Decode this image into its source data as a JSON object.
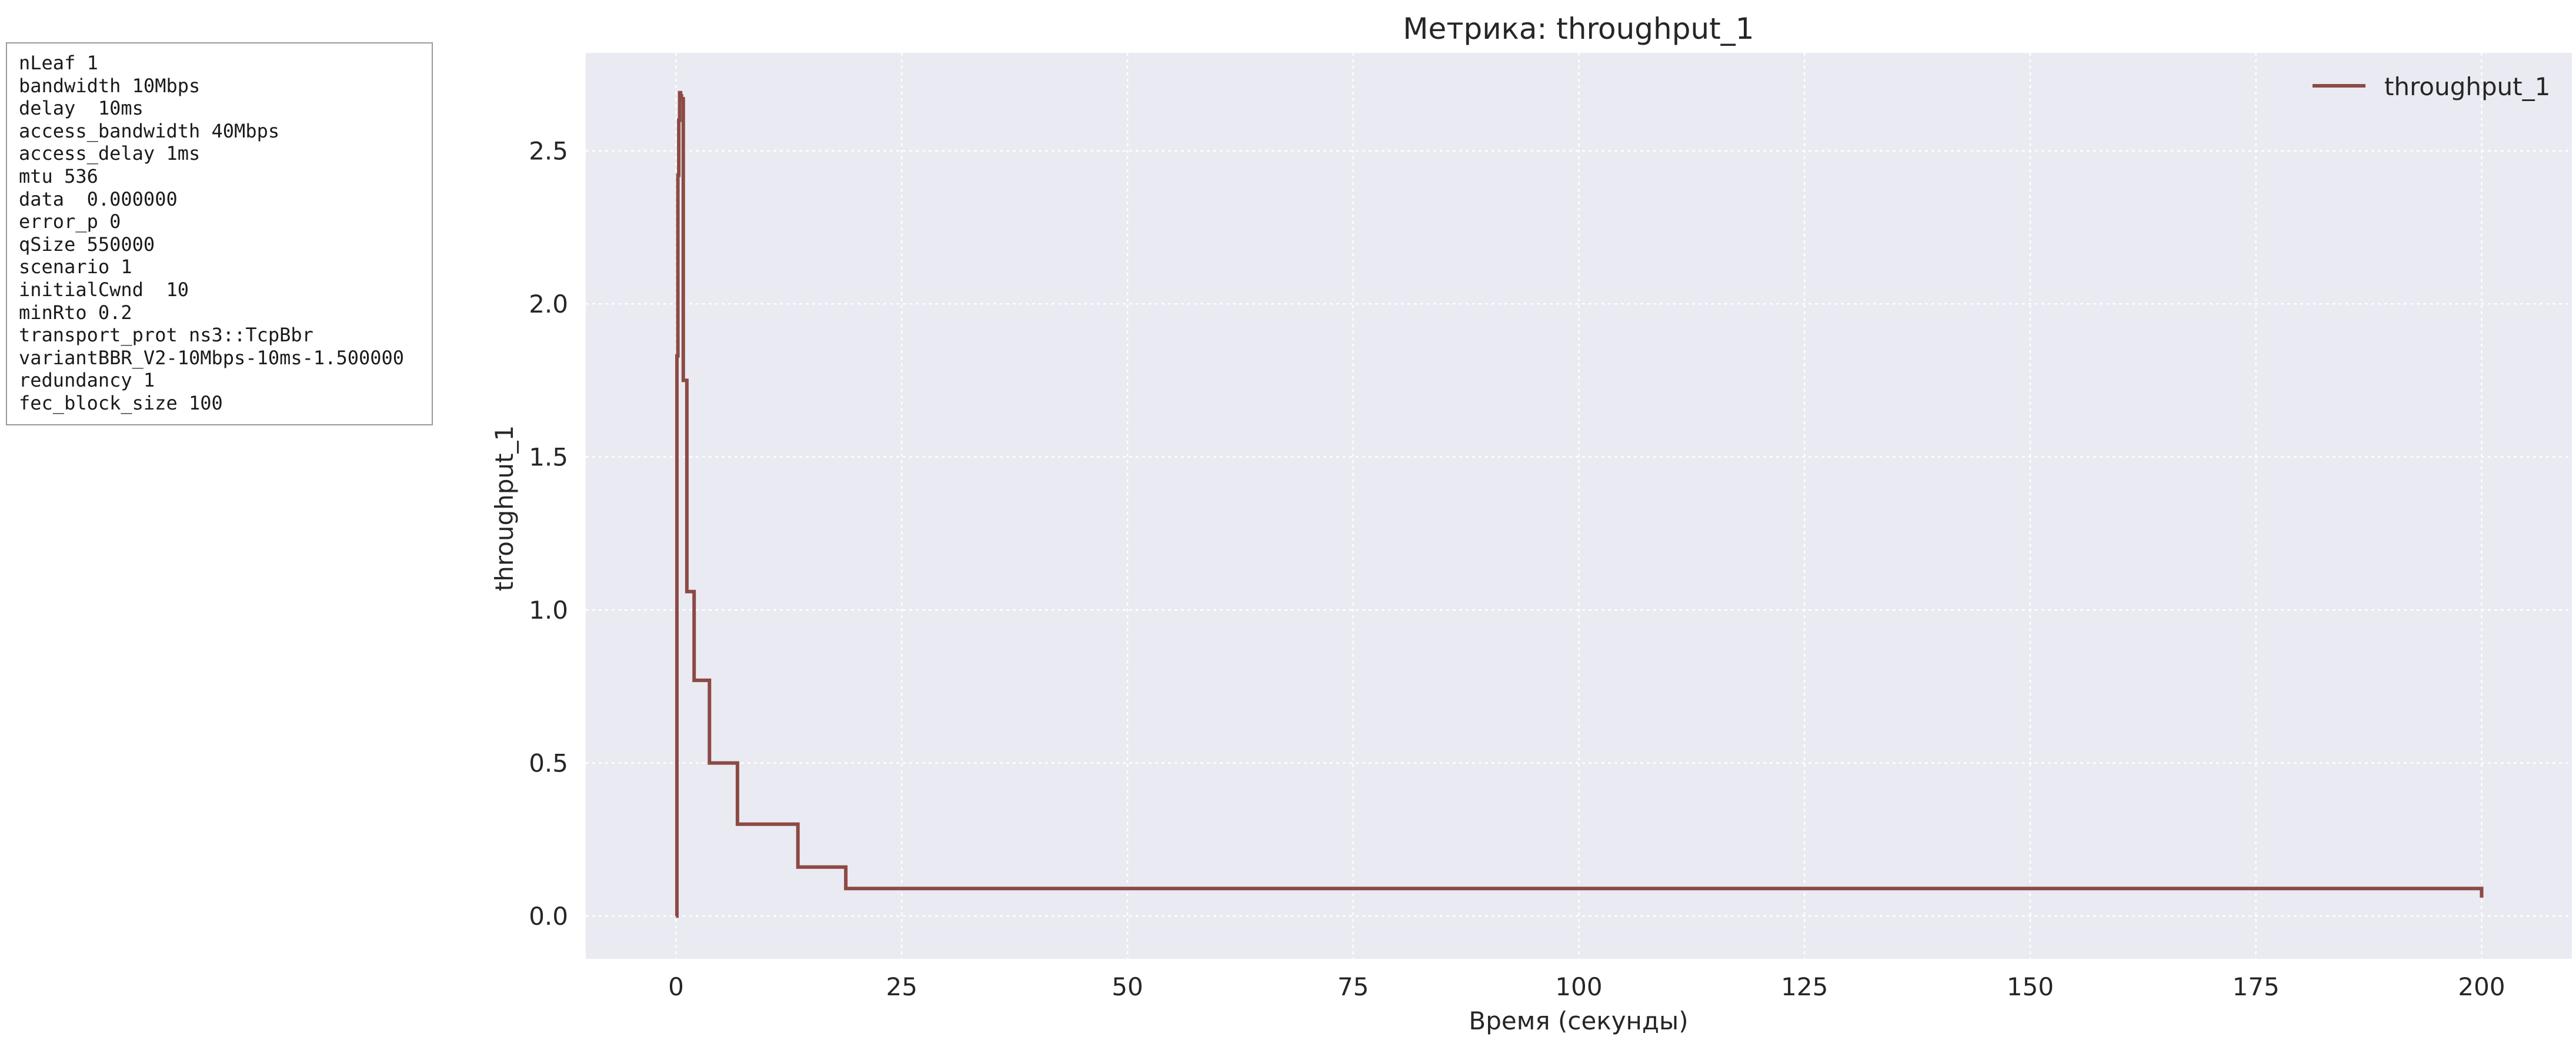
{
  "params": [
    "nLeaf 1",
    "bandwidth 10Mbps",
    "delay  10ms",
    "access_bandwidth 40Mbps",
    "access_delay 1ms",
    "mtu 536",
    "data  0.000000",
    "error_p 0",
    "qSize 550000",
    "scenario 1",
    "initialCwnd  10",
    "minRto 0.2",
    "transport_prot ns3::TcpBbr",
    "variantBBR_V2-10Mbps-10ms-1.500000",
    "redundancy 1",
    "fec_block_size 100"
  ],
  "chart_data": {
    "type": "line",
    "title": "Метрика: throughput_1",
    "xlabel": "Время (секунды)",
    "ylabel": "throughput_1",
    "xlim": [
      -10,
      210
    ],
    "ylim": [
      -0.14,
      2.82
    ],
    "xticks": [
      0,
      25,
      50,
      75,
      100,
      125,
      150,
      175,
      200
    ],
    "yticks": [
      0.0,
      0.5,
      1.0,
      1.5,
      2.0,
      2.5
    ],
    "xtick_labels": [
      "0",
      "25",
      "50",
      "75",
      "100",
      "125",
      "150",
      "175",
      "200"
    ],
    "ytick_labels": [
      "0.0",
      "0.5",
      "1.0",
      "1.5",
      "2.0",
      "2.5"
    ],
    "grid": true,
    "legend_position": "top-right",
    "colors": {
      "plot_bg": "#eaeaf2",
      "grid": "#ffffff",
      "line": "#8c4a44"
    },
    "series": [
      {
        "name": "throughput_1",
        "step": true,
        "x": [
          0.0,
          0.1,
          0.2,
          0.3,
          0.4,
          0.5,
          0.6,
          0.8,
          1.2,
          2.0,
          3.7,
          6.8,
          13.5,
          18.8,
          200.0
        ],
        "y": [
          0.0,
          1.83,
          2.42,
          2.6,
          2.69,
          2.68,
          2.67,
          1.75,
          1.06,
          0.77,
          0.5,
          0.3,
          0.16,
          0.09,
          0.06
        ]
      }
    ]
  }
}
